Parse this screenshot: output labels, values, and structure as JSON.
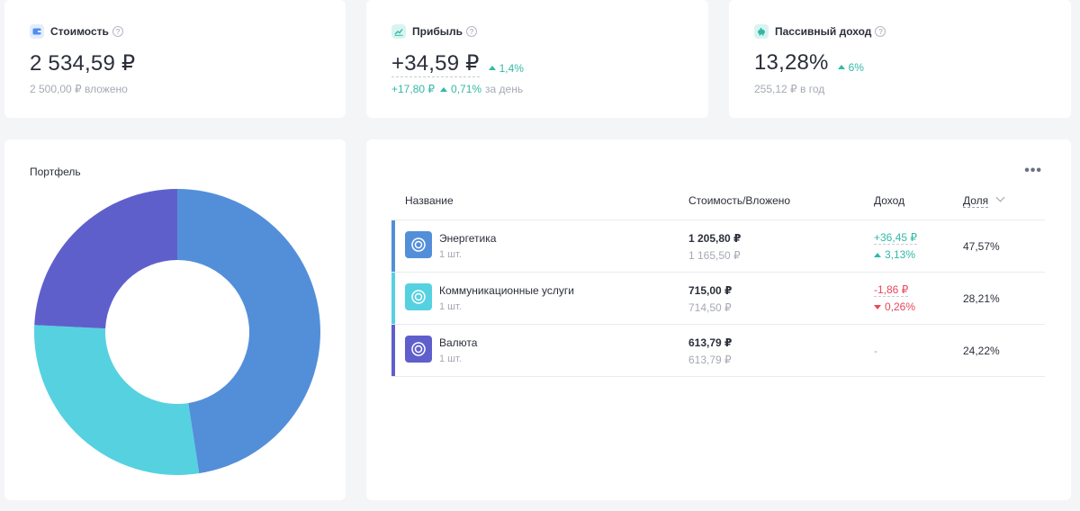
{
  "summary": {
    "value": {
      "label": "Стоимость",
      "icon": "wallet-icon",
      "icon_color": "#4f8ff0",
      "amount": "2 534,59 ₽",
      "sub": "2 500,00 ₽ вложено"
    },
    "profit": {
      "label": "Прибыль",
      "icon": "chart-icon",
      "icon_color": "#31b9a6",
      "amount": "+34,59 ₽",
      "delta": "1,4%",
      "sub_abs": "+17,80 ₽",
      "sub_pct": "0,71%",
      "sub_suffix": "за день"
    },
    "passive": {
      "label": "Пассивный доход",
      "icon": "piggy-bank-icon",
      "icon_color": "#31b9a6",
      "amount": "13,28%",
      "delta": "6%",
      "sub": "255,12 ₽ в год"
    }
  },
  "portfolio": {
    "title": "Портфель"
  },
  "table": {
    "headers": {
      "name": "Название",
      "value": "Стоимость/Вложено",
      "income": "Доход",
      "share": "Доля"
    },
    "rows": [
      {
        "name": "Энергетика",
        "qty": "1 шт.",
        "value": "1 205,80 ₽",
        "invested": "1 165,50 ₽",
        "income_abs": "+36,45 ₽",
        "income_pct": "3,13%",
        "income_dir": "up",
        "share": "47,57%",
        "color": "#538fd9"
      },
      {
        "name": "Коммуникационные услуги",
        "qty": "1 шт.",
        "value": "715,00 ₽",
        "invested": "714,50 ₽",
        "income_abs": "-1,86 ₽",
        "income_pct": "0,26%",
        "income_dir": "down",
        "share": "28,21%",
        "color": "#56d1e0"
      },
      {
        "name": "Валюта",
        "qty": "1 шт.",
        "value": "613,79 ₽",
        "invested": "613,79 ₽",
        "income_none": "-",
        "share": "24,22%",
        "color": "#5f5fcc"
      }
    ]
  },
  "chart_data": {
    "type": "pie",
    "categories": [
      "Энергетика",
      "Коммуникационные услуги",
      "Валюта"
    ],
    "values": [
      47.57,
      28.21,
      24.22
    ],
    "colors": [
      "#538fd9",
      "#56d1e0",
      "#5f5fcc"
    ],
    "title": "Портфель"
  }
}
